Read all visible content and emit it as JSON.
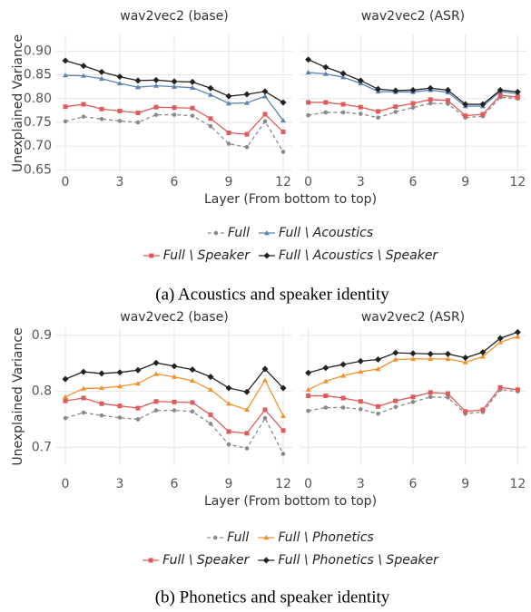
{
  "chart_data": [
    {
      "type": "line",
      "title": "wav2vec2 (base)",
      "ylabel": "Unexplained Variance",
      "xlabel": "Layer (From bottom to top)",
      "legend": "bottom",
      "grid": true,
      "x": [
        0,
        1,
        2,
        3,
        4,
        5,
        6,
        7,
        8,
        9,
        10,
        11,
        12
      ],
      "xlim": [
        -0.5,
        12.5
      ],
      "xticks": [
        0,
        3,
        6,
        9,
        12
      ],
      "ylim": [
        0.645,
        0.935
      ],
      "yticks": [
        {
          "value": 0.65,
          "label": "0.65"
        },
        {
          "value": 0.7,
          "label": "0.70"
        },
        {
          "value": 0.75,
          "label": "0.75"
        },
        {
          "value": 0.8,
          "label": "0.80"
        },
        {
          "value": 0.85,
          "label": "0.85"
        },
        {
          "value": 0.9,
          "label": "0.90"
        }
      ],
      "series": [
        {
          "name": "Full",
          "color": "#8a8a8a",
          "dashed": true,
          "marker": "circle",
          "values": [
            0.752,
            0.762,
            0.757,
            0.753,
            0.75,
            0.766,
            0.766,
            0.764,
            0.742,
            0.705,
            0.698,
            0.752,
            0.688
          ]
        },
        {
          "name": "Full \\ Acoustics",
          "color": "#5a83b3",
          "dashed": false,
          "marker": "triangle",
          "values": [
            0.849,
            0.848,
            0.842,
            0.832,
            0.824,
            0.827,
            0.825,
            0.823,
            0.808,
            0.79,
            0.791,
            0.805,
            0.754
          ]
        },
        {
          "name": "Full \\ Speaker",
          "color": "#e05a5a",
          "dashed": false,
          "marker": "square",
          "values": [
            0.783,
            0.788,
            0.778,
            0.774,
            0.77,
            0.782,
            0.781,
            0.78,
            0.758,
            0.728,
            0.725,
            0.767,
            0.73
          ]
        },
        {
          "name": "Full \\ Acoustics \\ Speaker",
          "color": "#222222",
          "dashed": false,
          "marker": "diamond",
          "values": [
            0.88,
            0.869,
            0.856,
            0.846,
            0.838,
            0.839,
            0.836,
            0.835,
            0.822,
            0.805,
            0.809,
            0.815,
            0.792
          ]
        }
      ]
    },
    {
      "type": "line",
      "title": "wav2vec2 (ASR)",
      "grid": true,
      "x": [
        0,
        1,
        2,
        3,
        4,
        5,
        6,
        7,
        8,
        9,
        10,
        11,
        12
      ],
      "xlim": [
        -0.5,
        12.5
      ],
      "xticks": [
        0,
        3,
        6,
        9,
        12
      ],
      "ylim": [
        0.645,
        0.935
      ],
      "yticks": [
        0.65,
        0.7,
        0.75,
        0.8,
        0.85,
        0.9
      ],
      "series": [
        {
          "name": "Full",
          "color": "#8a8a8a",
          "dashed": true,
          "marker": "circle",
          "values": [
            0.765,
            0.771,
            0.771,
            0.768,
            0.76,
            0.772,
            0.781,
            0.79,
            0.789,
            0.76,
            0.763,
            0.803,
            0.8
          ]
        },
        {
          "name": "Full \\ Acoustics",
          "color": "#5a83b3",
          "dashed": false,
          "marker": "triangle",
          "values": [
            0.855,
            0.852,
            0.845,
            0.832,
            0.815,
            0.814,
            0.814,
            0.818,
            0.813,
            0.784,
            0.784,
            0.815,
            0.81
          ]
        },
        {
          "name": "Full \\ Speaker",
          "color": "#e05a5a",
          "dashed": false,
          "marker": "square",
          "values": [
            0.792,
            0.792,
            0.788,
            0.782,
            0.773,
            0.783,
            0.79,
            0.798,
            0.796,
            0.764,
            0.767,
            0.807,
            0.803
          ]
        },
        {
          "name": "Full \\ Acoustics \\ Speaker",
          "color": "#222222",
          "dashed": false,
          "marker": "diamond",
          "values": [
            0.882,
            0.866,
            0.853,
            0.838,
            0.82,
            0.817,
            0.818,
            0.822,
            0.818,
            0.788,
            0.788,
            0.818,
            0.814
          ]
        }
      ]
    },
    {
      "type": "line",
      "title": "wav2vec2 (base)",
      "ylabel": "Unexplained Variance",
      "xlabel": "Layer (From bottom to top)",
      "legend": "bottom",
      "grid": true,
      "x": [
        0,
        1,
        2,
        3,
        4,
        5,
        6,
        7,
        8,
        9,
        10,
        11,
        12
      ],
      "xlim": [
        -0.5,
        12.5
      ],
      "xticks": [
        0,
        3,
        6,
        9,
        12
      ],
      "ylim": [
        0.668,
        0.913
      ],
      "yticks": [
        0.7,
        0.8,
        0.9
      ],
      "series": [
        {
          "name": "Full",
          "color": "#8a8a8a",
          "dashed": true,
          "marker": "circle",
          "values": [
            0.752,
            0.762,
            0.757,
            0.753,
            0.75,
            0.766,
            0.766,
            0.764,
            0.742,
            0.705,
            0.698,
            0.752,
            0.688
          ]
        },
        {
          "name": "Full \\ Phonetics",
          "color": "#f0922e",
          "dashed": false,
          "marker": "triangle",
          "values": [
            0.79,
            0.805,
            0.806,
            0.809,
            0.814,
            0.831,
            0.826,
            0.819,
            0.803,
            0.778,
            0.767,
            0.82,
            0.756
          ]
        },
        {
          "name": "Full \\ Speaker",
          "color": "#e05a5a",
          "dashed": false,
          "marker": "square",
          "values": [
            0.783,
            0.788,
            0.778,
            0.774,
            0.77,
            0.782,
            0.781,
            0.78,
            0.758,
            0.728,
            0.725,
            0.767,
            0.73
          ]
        },
        {
          "name": "Full \\ Phonetics \\ Speaker",
          "color": "#222222",
          "dashed": false,
          "marker": "diamond",
          "values": [
            0.822,
            0.835,
            0.832,
            0.834,
            0.838,
            0.851,
            0.845,
            0.839,
            0.826,
            0.806,
            0.799,
            0.84,
            0.806
          ]
        }
      ]
    },
    {
      "type": "line",
      "title": "wav2vec2 (ASR)",
      "grid": true,
      "x": [
        0,
        1,
        2,
        3,
        4,
        5,
        6,
        7,
        8,
        9,
        10,
        11,
        12
      ],
      "xlim": [
        -0.5,
        12.5
      ],
      "xticks": [
        0,
        3,
        6,
        9,
        12
      ],
      "ylim": [
        0.668,
        0.913
      ],
      "yticks": [
        0.7,
        0.8,
        0.9
      ],
      "series": [
        {
          "name": "Full",
          "color": "#8a8a8a",
          "dashed": true,
          "marker": "circle",
          "values": [
            0.765,
            0.771,
            0.771,
            0.768,
            0.76,
            0.772,
            0.781,
            0.79,
            0.789,
            0.76,
            0.763,
            0.803,
            0.8
          ]
        },
        {
          "name": "Full \\ Phonetics",
          "color": "#f0922e",
          "dashed": false,
          "marker": "triangle",
          "values": [
            0.803,
            0.818,
            0.828,
            0.835,
            0.84,
            0.857,
            0.858,
            0.858,
            0.858,
            0.852,
            0.862,
            0.888,
            0.898
          ]
        },
        {
          "name": "Full \\ Speaker",
          "color": "#e05a5a",
          "dashed": false,
          "marker": "square",
          "values": [
            0.792,
            0.792,
            0.788,
            0.782,
            0.773,
            0.783,
            0.79,
            0.798,
            0.796,
            0.764,
            0.767,
            0.807,
            0.803
          ]
        },
        {
          "name": "Full \\ Phonetics \\ Speaker",
          "color": "#222222",
          "dashed": false,
          "marker": "diamond",
          "values": [
            0.833,
            0.842,
            0.848,
            0.854,
            0.857,
            0.869,
            0.868,
            0.867,
            0.867,
            0.86,
            0.87,
            0.895,
            0.906
          ]
        }
      ]
    }
  ],
  "captions": [
    "(a) Acoustics and speaker identity",
    "(b) Phonetics and speaker identity"
  ]
}
